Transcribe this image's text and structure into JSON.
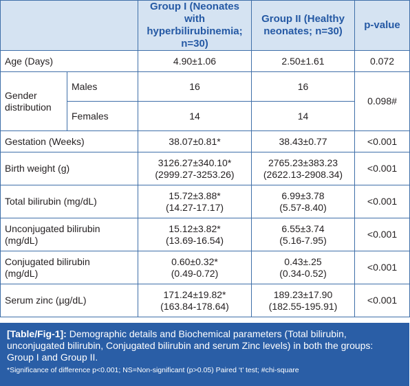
{
  "header": {
    "group1": "Group I (Neonates with hyperbilirubinemia; n=30)",
    "group2": "Group II (Healthy neonates; n=30)",
    "pvalue": "p-value"
  },
  "rows": {
    "age": {
      "label": "Age (Days)",
      "g1": "4.90±1.06",
      "g2": "2.50±1.61",
      "p": "0.072"
    },
    "gender": {
      "label": "Gender distribution",
      "males_label": "Males",
      "males_g1": "16",
      "males_g2": "16",
      "females_label": "Females",
      "females_g1": "14",
      "females_g2": "14",
      "p": "0.098#"
    },
    "gestation": {
      "label": "Gestation (Weeks)",
      "g1": "38.07±0.81*",
      "g2": "38.43±0.77",
      "p": "<0.001"
    },
    "birth_weight": {
      "label": "Birth weight (g)",
      "g1a": "3126.27±340.10*",
      "g1b": "(2999.27-3253.26)",
      "g2a": "2765.23±383.23",
      "g2b": "(2622.13-2908.34)",
      "p": "<0.001"
    },
    "total_bili": {
      "label": "Total bilirubin (mg/dL)",
      "g1a": "15.72±3.88*",
      "g1b": "(14.27-17.17)",
      "g2a": "6.99±3.78",
      "g2b": "(5.57-8.40)",
      "p": "<0.001"
    },
    "unconj_bili": {
      "label_a": "Unconjugated bilirubin",
      "label_b": "(mg/dL)",
      "g1a": "15.12±3.82*",
      "g1b": "(13.69-16.54)",
      "g2a": "6.55±3.74",
      "g2b": "(5.16-7.95)",
      "p": "<0.001"
    },
    "conj_bili": {
      "label_a": "Conjugated bilirubin",
      "label_b": "(mg/dL)",
      "g1a": "0.60±0.32*",
      "g1b": "(0.49-0.72)",
      "g2a": "0.43±.25",
      "g2b": "(0.34-0.52)",
      "p": "<0.001"
    },
    "zinc": {
      "label": "Serum zinc (µg/dL)",
      "g1a": "171.24±19.82*",
      "g1b": "(163.84-178.64)",
      "g2a": "189.23±17.90",
      "g2b": "(182.55-195.91)",
      "p": "<0.001"
    }
  },
  "caption": {
    "tag": "[Table/Fig-1]:",
    "text": "Demographic details and Biochemical parameters (Total bilirubin, unconjugated bilirubin, Conjugated bilirubin and serum Zinc levels) in both the groups: Group I and Group II.",
    "footnote": "*Significance of difference p<0.001; NS=Non-significant (p>0.05) Paired ‘t’ test; #chi-square"
  },
  "colors": {
    "header_bg": "#d5e3f2",
    "header_text": "#2559a4",
    "border": "#3e6ea8",
    "caption_bg": "#2a5ea6"
  }
}
